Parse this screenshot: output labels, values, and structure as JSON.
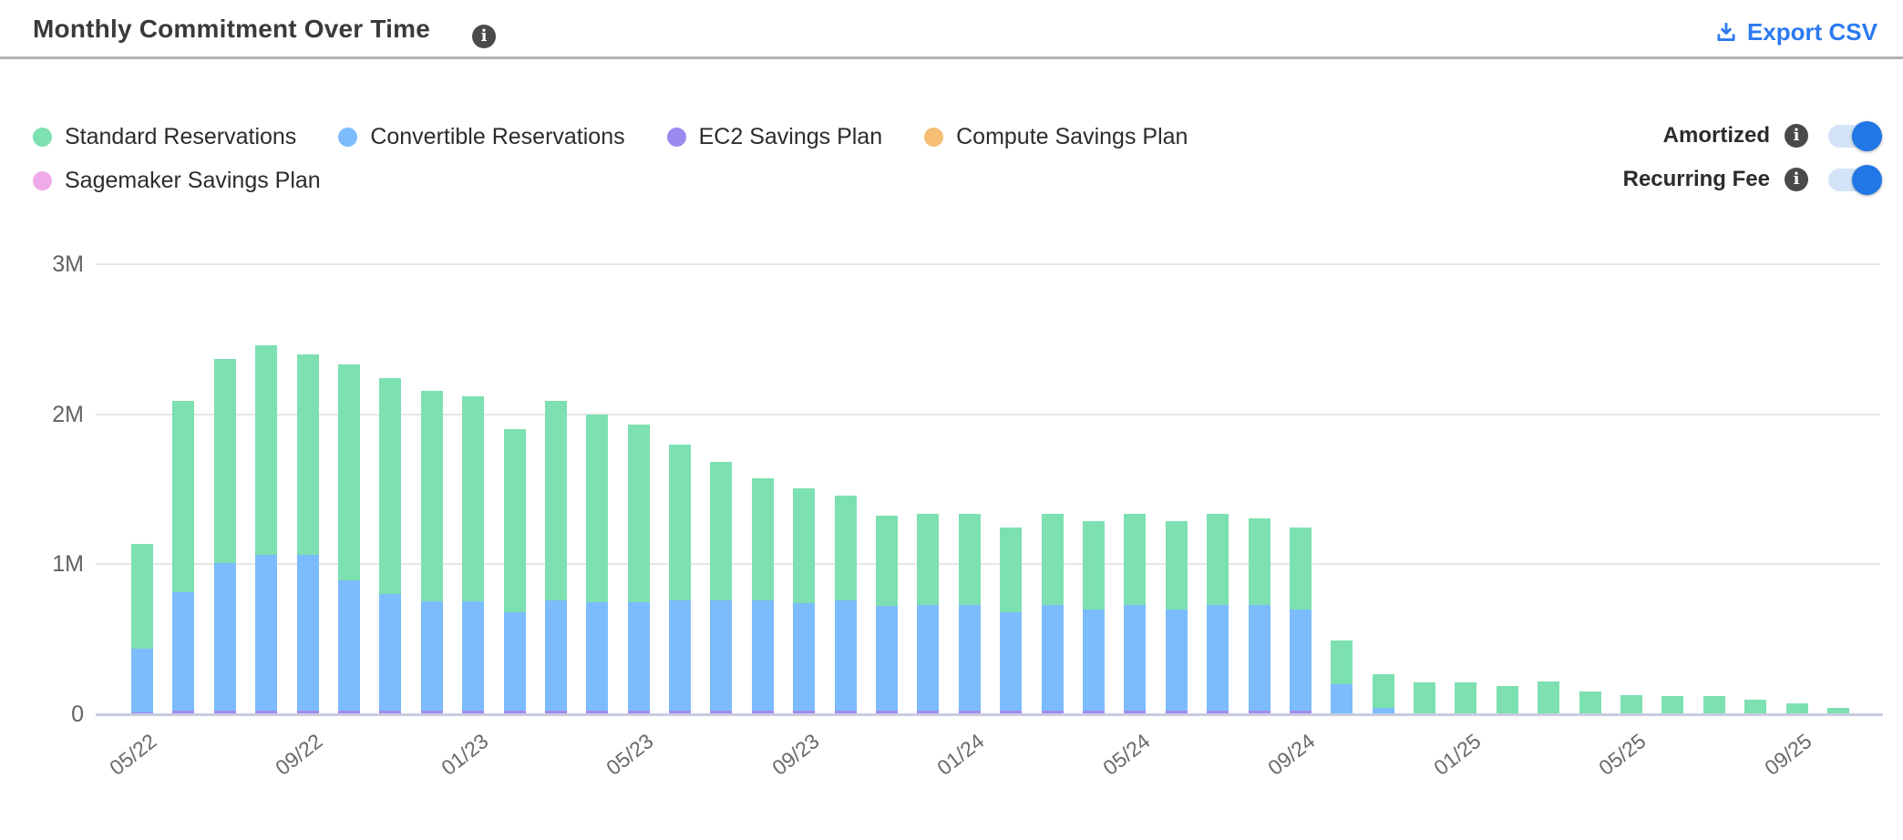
{
  "header": {
    "title": "Monthly Commitment Over Time",
    "export_label": "Export CSV"
  },
  "legend": {
    "items": [
      {
        "label": "Standard Reservations",
        "color": "#7de0b1"
      },
      {
        "label": "Convertible Reservations",
        "color": "#7cbcfc"
      },
      {
        "label": "EC2 Savings Plan",
        "color": "#9c8bef"
      },
      {
        "label": "Compute Savings Plan",
        "color": "#f6be72"
      },
      {
        "label": "Sagemaker Savings Plan",
        "color": "#f0a9e9"
      }
    ]
  },
  "toggles": [
    {
      "label": "Amortized",
      "state": "on"
    },
    {
      "label": "Recurring Fee",
      "state": "on"
    }
  ],
  "colors": {
    "accent_blue": "#2b7af0",
    "toggle_track": "#d3e4f8",
    "toggle_knob": "#2077e5",
    "info_badge": "#4a4a4a",
    "gridline": "#e6e6e6",
    "baseline": "#c7cce0",
    "axis_text": "#636363"
  },
  "chart_data": {
    "type": "bar",
    "stacked": true,
    "title": "Monthly Commitment Over Time",
    "unit": "millions (M)",
    "ylim": [
      0,
      3000000
    ],
    "y_ticks": [
      "0",
      "1M",
      "2M",
      "3M"
    ],
    "grid": "horizontal",
    "legend_position": "top-left",
    "x_tick_labels_shown": [
      "05/22",
      "09/22",
      "01/23",
      "05/23",
      "09/23",
      "01/24",
      "05/24",
      "09/24",
      "01/25",
      "05/25",
      "09/25"
    ],
    "x": [
      "05/22",
      "06/22",
      "07/22",
      "08/22",
      "09/22",
      "10/22",
      "11/22",
      "12/22",
      "01/23",
      "02/23",
      "03/23",
      "04/23",
      "05/23",
      "06/23",
      "07/23",
      "08/23",
      "09/23",
      "10/23",
      "11/23",
      "12/23",
      "01/24",
      "02/24",
      "03/24",
      "04/24",
      "05/24",
      "06/24",
      "07/24",
      "08/24",
      "09/24",
      "10/24",
      "11/24",
      "12/24",
      "01/25",
      "02/25",
      "03/25",
      "04/25",
      "05/25",
      "06/25",
      "07/25",
      "08/25",
      "09/25",
      "10/25"
    ],
    "stack_order_bottom_to_top": [
      "EC2 Savings Plan",
      "Convertible Reservations",
      "Standard Reservations"
    ],
    "series": [
      {
        "name": "Standard Reservations",
        "color": "#7de0b1",
        "values": [
          0.7,
          1.275,
          1.36,
          1.4,
          1.34,
          1.44,
          1.44,
          1.4,
          1.365,
          1.22,
          1.33,
          1.25,
          1.18,
          1.04,
          0.92,
          0.81,
          0.765,
          0.7,
          0.605,
          0.605,
          0.605,
          0.565,
          0.605,
          0.585,
          0.605,
          0.585,
          0.605,
          0.575,
          0.545,
          0.29,
          0.23,
          0.21,
          0.21,
          0.19,
          0.22,
          0.15,
          0.13,
          0.12,
          0.12,
          0.1,
          0.07,
          0.04
        ]
      },
      {
        "name": "Convertible Reservations",
        "color": "#7cbcfc",
        "values": [
          0.425,
          0.79,
          0.985,
          1.035,
          1.035,
          0.865,
          0.775,
          0.73,
          0.73,
          0.655,
          0.735,
          0.725,
          0.725,
          0.735,
          0.735,
          0.735,
          0.715,
          0.735,
          0.695,
          0.705,
          0.705,
          0.655,
          0.705,
          0.675,
          0.705,
          0.675,
          0.705,
          0.705,
          0.675,
          0.2,
          0.04,
          0,
          0,
          0,
          0,
          0,
          0,
          0,
          0,
          0,
          0,
          0
        ]
      },
      {
        "name": "EC2 Savings Plan",
        "color": "#a18bf0",
        "values": [
          0.01,
          0.025,
          0.025,
          0.025,
          0.025,
          0.025,
          0.025,
          0.025,
          0.025,
          0.025,
          0.025,
          0.025,
          0.025,
          0.025,
          0.025,
          0.025,
          0.025,
          0.025,
          0.025,
          0.025,
          0.025,
          0.025,
          0.025,
          0.025,
          0.025,
          0.025,
          0.025,
          0.025,
          0.025,
          0,
          0,
          0,
          0,
          0,
          0,
          0,
          0,
          0,
          0,
          0,
          0,
          0
        ]
      },
      {
        "name": "Compute Savings Plan",
        "color": "#f6be72",
        "values": [
          0,
          0,
          0,
          0,
          0,
          0,
          0,
          0,
          0,
          0,
          0,
          0,
          0,
          0,
          0,
          0,
          0,
          0,
          0,
          0,
          0,
          0,
          0,
          0,
          0,
          0,
          0,
          0,
          0,
          0,
          0,
          0,
          0,
          0,
          0,
          0,
          0,
          0,
          0,
          0,
          0,
          0
        ]
      },
      {
        "name": "Sagemaker Savings Plan",
        "color": "#f0a9e9",
        "values": [
          0,
          0,
          0,
          0,
          0,
          0,
          0,
          0,
          0,
          0,
          0,
          0,
          0,
          0,
          0,
          0,
          0,
          0,
          0,
          0,
          0,
          0,
          0,
          0,
          0,
          0,
          0,
          0,
          0,
          0,
          0,
          0,
          0,
          0,
          0,
          0,
          0,
          0,
          0,
          0,
          0,
          0
        ]
      }
    ]
  }
}
